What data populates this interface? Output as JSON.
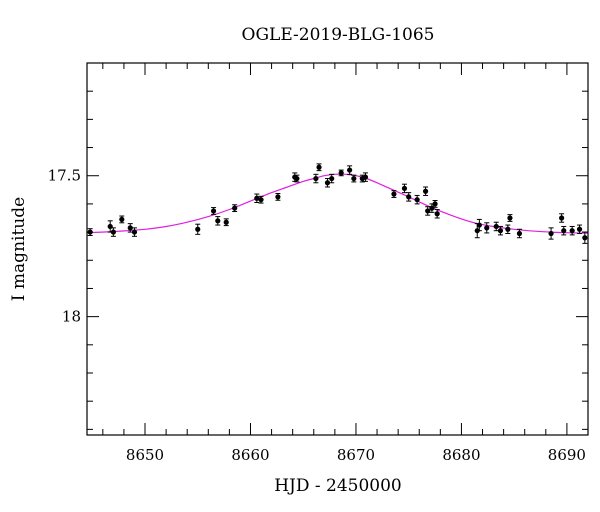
{
  "chart_data": {
    "type": "scatter",
    "title": "OGLE-2019-BLG-1065",
    "xlabel": "HJD - 2450000",
    "ylabel": "I magnitude",
    "xlim": [
      8644.5,
      8692
    ],
    "ylim": [
      18.42,
      17.1
    ],
    "y_inverted": true,
    "grid": false,
    "legend": "none",
    "x_ticks": [
      {
        "value": 8650,
        "label": "8650"
      },
      {
        "value": 8660,
        "label": "8660"
      },
      {
        "value": 8670,
        "label": "8670"
      },
      {
        "value": 8680,
        "label": "8680"
      },
      {
        "value": 8690,
        "label": "8690"
      }
    ],
    "y_ticks": [
      {
        "value": 17.5,
        "label": "17.5"
      },
      {
        "value": 18,
        "label": "18"
      }
    ],
    "x_minor_step": 2,
    "y_minor_step": 0.1,
    "colors": {
      "points": "#000000",
      "model": "#e020e0",
      "frame": "#000000"
    },
    "series": [
      {
        "kind": "points",
        "x": [
          8644.8,
          8646.7,
          8647.0,
          8647.8,
          8648.6,
          8649.0,
          8655.0,
          8656.5,
          8656.9,
          8657.7,
          8658.5,
          8660.6,
          8661.0,
          8662.6,
          8664.2,
          8664.4,
          8666.2,
          8666.5,
          8667.3,
          8667.7,
          8668.6,
          8669.4,
          8669.8,
          8670.6,
          8670.9,
          8673.6,
          8674.6,
          8675.0,
          8675.8,
          8676.6,
          8676.8,
          8677.2,
          8677.5,
          8677.7,
          8681.5,
          8681.7,
          8682.4,
          8683.3,
          8683.7,
          8684.4,
          8684.6,
          8685.5,
          8688.5,
          8689.5,
          8689.7,
          8690.5,
          8691.2,
          8691.7
        ],
        "y": [
          17.7,
          17.68,
          17.7,
          17.655,
          17.685,
          17.7,
          17.69,
          17.625,
          17.66,
          17.665,
          17.615,
          17.58,
          17.585,
          17.575,
          17.505,
          17.51,
          17.51,
          17.47,
          17.525,
          17.51,
          17.49,
          17.48,
          17.51,
          17.51,
          17.505,
          17.565,
          17.545,
          17.575,
          17.585,
          17.555,
          17.625,
          17.615,
          17.6,
          17.635,
          17.695,
          17.675,
          17.685,
          17.68,
          17.695,
          17.69,
          17.65,
          17.705,
          17.705,
          17.65,
          17.695,
          17.695,
          17.69,
          17.72
        ],
        "err": [
          0.012,
          0.02,
          0.015,
          0.012,
          0.015,
          0.015,
          0.018,
          0.012,
          0.015,
          0.012,
          0.012,
          0.015,
          0.012,
          0.012,
          0.015,
          0.012,
          0.015,
          0.012,
          0.015,
          0.015,
          0.01,
          0.015,
          0.012,
          0.012,
          0.015,
          0.012,
          0.015,
          0.015,
          0.015,
          0.015,
          0.015,
          0.015,
          0.012,
          0.015,
          0.025,
          0.02,
          0.018,
          0.015,
          0.015,
          0.015,
          0.012,
          0.015,
          0.02,
          0.015,
          0.015,
          0.015,
          0.015,
          0.02
        ]
      },
      {
        "kind": "model",
        "x": [
          8644.5,
          8647,
          8650,
          8652,
          8654,
          8656,
          8658,
          8660,
          8662,
          8663.5,
          8665,
          8666,
          8667,
          8668,
          8669,
          8670,
          8671,
          8672,
          8673.5,
          8675,
          8677,
          8679,
          8681,
          8683,
          8685,
          8687,
          8689,
          8692
        ],
        "y": [
          17.702,
          17.698,
          17.69,
          17.68,
          17.665,
          17.645,
          17.62,
          17.59,
          17.56,
          17.54,
          17.52,
          17.51,
          17.5,
          17.495,
          17.495,
          17.5,
          17.51,
          17.525,
          17.55,
          17.575,
          17.61,
          17.64,
          17.665,
          17.68,
          17.69,
          17.697,
          17.701,
          17.704
        ]
      }
    ]
  }
}
